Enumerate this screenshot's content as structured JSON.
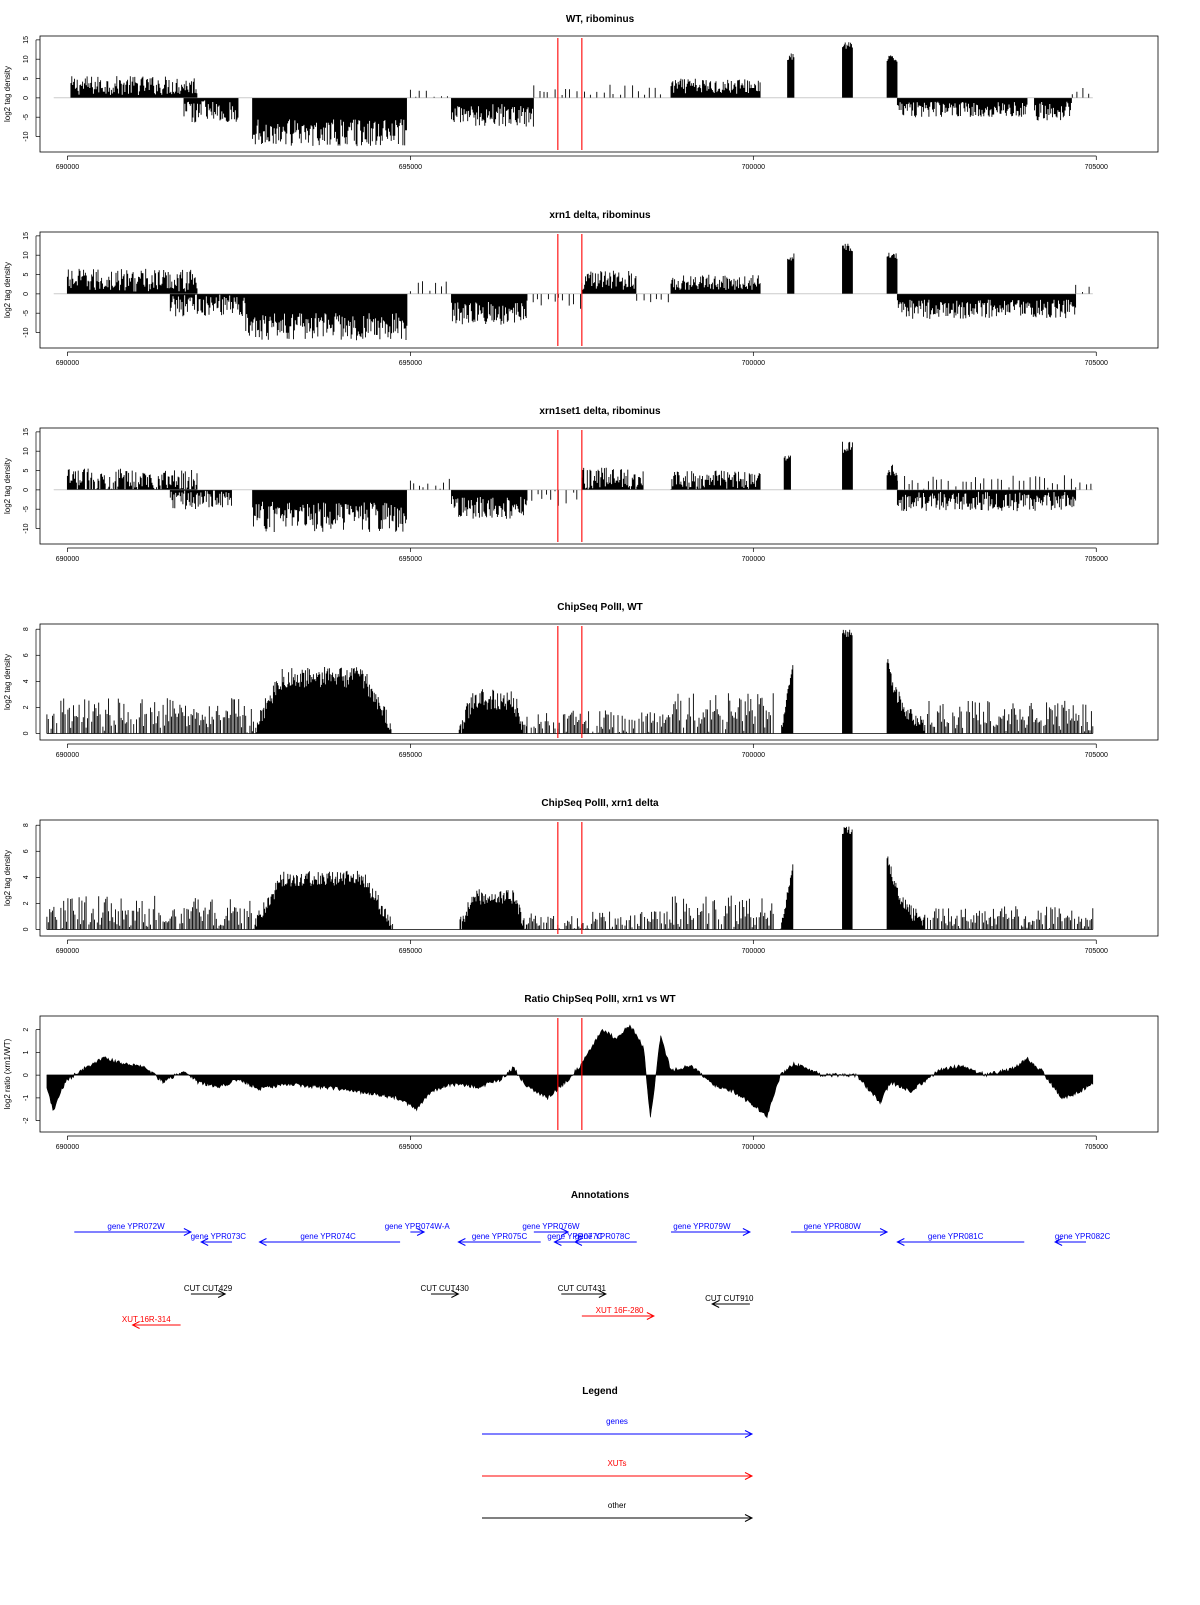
{
  "colors": {
    "gene": "#0000ff",
    "xut": "#ff0000",
    "other": "#000000",
    "marker": "#ff0000",
    "bars": "#000000",
    "zero_line": "#999999"
  },
  "x_axis": {
    "xlim": [
      689600,
      705900
    ],
    "ticks": [
      690000,
      695000,
      700000,
      705000
    ],
    "tick_labels": [
      "690000",
      "695000",
      "700000",
      "705000"
    ]
  },
  "markers": [
    697150,
    697500
  ],
  "panels": [
    {
      "title": "WT, ribominus",
      "ylabel": "log2 tag density",
      "ylim": [
        -14,
        16
      ],
      "yticks": [
        -10,
        -5,
        0,
        5,
        10,
        15
      ],
      "ytick_labels": [
        "-10",
        "-5",
        "0",
        "5",
        "10",
        "15"
      ],
      "chart_data": {
        "type": "bar",
        "segments": [
          {
            "start": 690050,
            "end": 691900,
            "sign": 1,
            "mean": 3.2,
            "amp": 2.5
          },
          {
            "start": 691700,
            "end": 692500,
            "sign": -1,
            "mean": 3.5,
            "amp": 3
          },
          {
            "start": 692700,
            "end": 694950,
            "sign": -1,
            "mean": 9,
            "amp": 3.5
          },
          {
            "start": 695600,
            "end": 696800,
            "sign": -1,
            "mean": 4.5,
            "amp": 3
          },
          {
            "start": 698800,
            "end": 700100,
            "sign": 1,
            "mean": 3,
            "amp": 2
          },
          {
            "start": 700500,
            "end": 700600,
            "sign": 1,
            "mean": 10.5,
            "amp": 1
          },
          {
            "start": 701300,
            "end": 701450,
            "sign": 1,
            "mean": 13.5,
            "amp": 1
          },
          {
            "start": 701950,
            "end": 702100,
            "sign": 1,
            "mean": 10,
            "amp": 1
          },
          {
            "start": 702100,
            "end": 704000,
            "sign": -1,
            "mean": 3,
            "amp": 2
          },
          {
            "start": 704100,
            "end": 704650,
            "sign": -1,
            "mean": 3.5,
            "amp": 2.5
          }
        ],
        "sparse": [
          {
            "start": 695000,
            "end": 695600,
            "sign": 1,
            "mean": 1,
            "amp": 1.5
          },
          {
            "start": 696800,
            "end": 698700,
            "sign": 1,
            "mean": 1.5,
            "amp": 1.5
          },
          {
            "start": 704650,
            "end": 704950,
            "sign": 1,
            "mean": 1.5,
            "amp": 1
          }
        ]
      }
    },
    {
      "title": "xrn1 delta, ribominus",
      "ylabel": "log2 tag density",
      "ylim": [
        -14,
        16
      ],
      "yticks": [
        -10,
        -5,
        0,
        5,
        10,
        15
      ],
      "ytick_labels": [
        "-10",
        "-5",
        "0",
        "5",
        "10",
        "15"
      ],
      "chart_data": {
        "type": "bar",
        "segments": [
          {
            "start": 690000,
            "end": 691900,
            "sign": 1,
            "mean": 3.5,
            "amp": 3
          },
          {
            "start": 691500,
            "end": 692600,
            "sign": -1,
            "mean": 3,
            "amp": 3
          },
          {
            "start": 692600,
            "end": 694950,
            "sign": -1,
            "mean": 8.5,
            "amp": 3.5
          },
          {
            "start": 695600,
            "end": 696700,
            "sign": -1,
            "mean": 5,
            "amp": 3
          },
          {
            "start": 697500,
            "end": 698300,
            "sign": 1,
            "mean": 3.5,
            "amp": 2.5
          },
          {
            "start": 698800,
            "end": 700100,
            "sign": 1,
            "mean": 3,
            "amp": 2
          },
          {
            "start": 700500,
            "end": 700600,
            "sign": 1,
            "mean": 9.5,
            "amp": 1
          },
          {
            "start": 701300,
            "end": 701450,
            "sign": 1,
            "mean": 12,
            "amp": 1
          },
          {
            "start": 701950,
            "end": 702100,
            "sign": 1,
            "mean": 10,
            "amp": 1
          },
          {
            "start": 702100,
            "end": 704700,
            "sign": -1,
            "mean": 4,
            "amp": 2.5
          }
        ],
        "sparse": [
          {
            "start": 695000,
            "end": 695600,
            "sign": 1,
            "mean": 1.5,
            "amp": 1.5
          },
          {
            "start": 696700,
            "end": 697500,
            "sign": -1,
            "mean": 2,
            "amp": 2
          },
          {
            "start": 698300,
            "end": 698800,
            "sign": -1,
            "mean": 1.5,
            "amp": 1
          },
          {
            "start": 704700,
            "end": 704950,
            "sign": 1,
            "mean": 1,
            "amp": 1
          }
        ]
      }
    },
    {
      "title": "xrn1set1 delta, ribominus",
      "ylabel": "log2 tag density",
      "ylim": [
        -14,
        16
      ],
      "yticks": [
        -10,
        -5,
        0,
        5,
        10,
        15
      ],
      "ytick_labels": [
        "-10",
        "-5",
        "0",
        "5",
        "10",
        "15"
      ],
      "chart_data": {
        "type": "bar",
        "segments": [
          {
            "start": 690000,
            "end": 691900,
            "sign": 1,
            "mean": 2.5,
            "amp": 3
          },
          {
            "start": 691500,
            "end": 692400,
            "sign": -1,
            "mean": 2.5,
            "amp": 2.5
          },
          {
            "start": 692700,
            "end": 694950,
            "sign": -1,
            "mean": 7,
            "amp": 4
          },
          {
            "start": 695600,
            "end": 696700,
            "sign": -1,
            "mean": 4.5,
            "amp": 3
          },
          {
            "start": 697500,
            "end": 698400,
            "sign": 1,
            "mean": 3,
            "amp": 3
          },
          {
            "start": 698800,
            "end": 700100,
            "sign": 1,
            "mean": 2.5,
            "amp": 2.5
          },
          {
            "start": 700450,
            "end": 700550,
            "sign": 1,
            "mean": 8,
            "amp": 1
          },
          {
            "start": 701300,
            "end": 701450,
            "sign": 1,
            "mean": 11,
            "amp": 1.5
          },
          {
            "start": 701950,
            "end": 702100,
            "sign": 1,
            "mean": 5,
            "amp": 1.5
          },
          {
            "start": 702100,
            "end": 704700,
            "sign": -1,
            "mean": 3,
            "amp": 2.5
          }
        ],
        "sparse": [
          {
            "start": 695000,
            "end": 695600,
            "sign": 1,
            "mean": 1,
            "amp": 1.5
          },
          {
            "start": 696700,
            "end": 697500,
            "sign": -1,
            "mean": 1.5,
            "amp": 2
          },
          {
            "start": 702100,
            "end": 704700,
            "sign": 1,
            "mean": 1,
            "amp": 2
          },
          {
            "start": 704700,
            "end": 704950,
            "sign": 1,
            "mean": 1,
            "amp": 1
          }
        ]
      }
    },
    {
      "title": "ChipSeq PolII, WT",
      "ylabel": "log2 tag density",
      "ylim": [
        -0.5,
        8.4
      ],
      "yticks": [
        0,
        2,
        4,
        6,
        8
      ],
      "ytick_labels": [
        "0",
        "2",
        "4",
        "6",
        "8"
      ],
      "chart_data": {
        "type": "area",
        "segments": [
          {
            "start": 689700,
            "end": 692700,
            "shape": "noisy",
            "peak": 1.6,
            "amp": 1.2
          },
          {
            "start": 692700,
            "end": 694750,
            "shape": "dome",
            "peak": 4.3,
            "amp": 0.8
          },
          {
            "start": 695700,
            "end": 696700,
            "shape": "dome",
            "peak": 2.6,
            "amp": 0.8
          },
          {
            "start": 696700,
            "end": 698800,
            "shape": "noisy",
            "peak": 0.8,
            "amp": 1
          },
          {
            "start": 698800,
            "end": 700300,
            "shape": "noisy",
            "peak": 1.9,
            "amp": 1.2
          },
          {
            "start": 700400,
            "end": 700580,
            "shape": "ramp",
            "peak": 5.4,
            "amp": 0.3
          },
          {
            "start": 701300,
            "end": 701450,
            "shape": "flat",
            "peak": 7.7,
            "amp": 0.3
          },
          {
            "start": 701950,
            "end": 702500,
            "shape": "decay",
            "peak": 5.4,
            "amp": 0.6
          },
          {
            "start": 702500,
            "end": 704950,
            "shape": "noisy",
            "peak": 1.5,
            "amp": 1
          }
        ]
      }
    },
    {
      "title": "ChipSeq PolII, xrn1 delta",
      "ylabel": "log2 tag density",
      "ylim": [
        -0.5,
        8.4
      ],
      "yticks": [
        0,
        2,
        4,
        6,
        8
      ],
      "ytick_labels": [
        "0",
        "2",
        "4",
        "6",
        "8"
      ],
      "chart_data": {
        "type": "area",
        "segments": [
          {
            "start": 689700,
            "end": 692700,
            "shape": "noisy",
            "peak": 1.4,
            "amp": 1.2
          },
          {
            "start": 692700,
            "end": 694750,
            "shape": "dome",
            "peak": 3.9,
            "amp": 0.6
          },
          {
            "start": 695700,
            "end": 696700,
            "shape": "dome",
            "peak": 2.5,
            "amp": 0.6
          },
          {
            "start": 696700,
            "end": 698800,
            "shape": "noisy",
            "peak": 0.6,
            "amp": 0.8
          },
          {
            "start": 698800,
            "end": 700300,
            "shape": "noisy",
            "peak": 1.6,
            "amp": 1
          },
          {
            "start": 700400,
            "end": 700580,
            "shape": "ramp",
            "peak": 5,
            "amp": 0.3
          },
          {
            "start": 701300,
            "end": 701450,
            "shape": "flat",
            "peak": 7.6,
            "amp": 0.3
          },
          {
            "start": 701950,
            "end": 702500,
            "shape": "decay",
            "peak": 5.4,
            "amp": 0.6
          },
          {
            "start": 702500,
            "end": 704950,
            "shape": "noisy",
            "peak": 1,
            "amp": 0.8
          }
        ]
      }
    },
    {
      "title": "Ratio ChipSeq PolII, xrn1 vs WT",
      "ylabel": "log2 ratio (xrn1/WT)",
      "ylim": [
        -2.5,
        2.6
      ],
      "yticks": [
        -2,
        -1,
        0,
        1,
        2
      ],
      "ytick_labels": [
        "-2",
        "-1",
        "0",
        "1",
        "2"
      ],
      "chart_data": {
        "type": "area",
        "points": [
          [
            689700,
            -0.6
          ],
          [
            689800,
            -1.6
          ],
          [
            689900,
            -0.7
          ],
          [
            690000,
            -0.2
          ],
          [
            690300,
            0.4
          ],
          [
            690550,
            0.75
          ],
          [
            690800,
            0.5
          ],
          [
            691100,
            0.4
          ],
          [
            691400,
            -0.3
          ],
          [
            691700,
            0.2
          ],
          [
            691900,
            -0.3
          ],
          [
            692200,
            -0.5
          ],
          [
            692500,
            -0.2
          ],
          [
            692800,
            -0.6
          ],
          [
            693200,
            -0.4
          ],
          [
            693600,
            -0.5
          ],
          [
            694000,
            -0.6
          ],
          [
            694400,
            -0.8
          ],
          [
            694800,
            -1.0
          ],
          [
            695100,
            -1.5
          ],
          [
            695300,
            -0.7
          ],
          [
            695600,
            -0.4
          ],
          [
            696000,
            -0.5
          ],
          [
            696300,
            -0.2
          ],
          [
            696500,
            0.3
          ],
          [
            696700,
            -0.5
          ],
          [
            697000,
            -1.0
          ],
          [
            697150,
            -0.6
          ],
          [
            697300,
            -0.2
          ],
          [
            697500,
            0.5
          ],
          [
            697800,
            2.0
          ],
          [
            698000,
            1.6
          ],
          [
            698200,
            2.2
          ],
          [
            698400,
            1.2
          ],
          [
            698500,
            -1.9
          ],
          [
            698650,
            1.7
          ],
          [
            698800,
            0.2
          ],
          [
            699100,
            0.4
          ],
          [
            699400,
            -0.4
          ],
          [
            699700,
            -0.7
          ],
          [
            700000,
            -1.3
          ],
          [
            700200,
            -1.8
          ],
          [
            700400,
            0.0
          ],
          [
            700600,
            0.5
          ],
          [
            701000,
            0.0
          ],
          [
            701500,
            0.0
          ],
          [
            701850,
            -1.2
          ],
          [
            702000,
            -0.3
          ],
          [
            702300,
            -0.7
          ],
          [
            702700,
            0.2
          ],
          [
            703000,
            0.4
          ],
          [
            703400,
            0.0
          ],
          [
            703800,
            0.3
          ],
          [
            704000,
            0.7
          ],
          [
            704200,
            0.2
          ],
          [
            704500,
            -1.0
          ],
          [
            704700,
            -0.8
          ],
          [
            704950,
            -0.4
          ]
        ]
      }
    }
  ],
  "annotations": {
    "title": "Annotations",
    "items": [
      {
        "label": "gene YPR072W",
        "type": "gene",
        "start": 690100,
        "end": 691800,
        "label_x": 691000,
        "row": 0
      },
      {
        "label": "gene YPR073C",
        "type": "gene",
        "start": 691950,
        "end": 692400,
        "label_x": 692200,
        "row": 1
      },
      {
        "label": "gene YPR074C",
        "type": "gene",
        "start": 692800,
        "end": 694850,
        "label_x": 693800,
        "row": 1
      },
      {
        "label": "gene YPR074W-A",
        "type": "gene",
        "start": 695000,
        "end": 695200,
        "label_x": 695100,
        "row": 0
      },
      {
        "label": "gene YPR075C",
        "type": "gene",
        "start": 695700,
        "end": 696900,
        "label_x": 696300,
        "row": 1
      },
      {
        "label": "gene YPR076W",
        "type": "gene",
        "start": 696800,
        "end": 697300,
        "label_x": 697050,
        "row": 0
      },
      {
        "label": "gene YPR077C",
        "type": "gene",
        "start": 697100,
        "end": 697500,
        "label_x": 697400,
        "row": 1
      },
      {
        "label": "gene YPR078C",
        "type": "gene",
        "start": 697400,
        "end": 698300,
        "label_x": 697800,
        "row": 1
      },
      {
        "label": "gene YPR079W",
        "type": "gene",
        "start": 698800,
        "end": 699950,
        "label_x": 699250,
        "row": 0
      },
      {
        "label": "gene YPR080W",
        "type": "gene",
        "start": 700550,
        "end": 701950,
        "label_x": 701150,
        "row": 0
      },
      {
        "label": "gene YPR081C",
        "type": "gene",
        "start": 702100,
        "end": 703950,
        "label_x": 702950,
        "row": 1
      },
      {
        "label": "gene YPR082C",
        "type": "gene",
        "start": 704400,
        "end": 704850,
        "label_x": 704800,
        "row": 1
      },
      {
        "label": "CUT CUT429",
        "type": "other",
        "start": 691800,
        "end": 692300,
        "label_x": 692050,
        "row": 2
      },
      {
        "label": "CUT CUT430",
        "type": "other",
        "start": 695300,
        "end": 695700,
        "label_x": 695500,
        "row": 2
      },
      {
        "label": "CUT CUT431",
        "type": "other",
        "start": 697200,
        "end": 697850,
        "label_x": 697500,
        "row": 2
      },
      {
        "label": "CUT CUT910",
        "type": "other",
        "start": 699400,
        "end": 699950,
        "label_x": 699650,
        "row": 3
      },
      {
        "label": "XUT 16F-280",
        "type": "xut",
        "start": 697500,
        "end": 698550,
        "label_x": 698050,
        "row": 4
      },
      {
        "label": "XUT 16R-314",
        "type": "xut",
        "start": 690950,
        "end": 691650,
        "label_x": 691150,
        "row": 5
      }
    ],
    "strand_reverse": [
      "gene YPR073C",
      "gene YPR074C",
      "gene YPR075C",
      "gene YPR077C",
      "gene YPR078C",
      "gene YPR081C",
      "gene YPR082C",
      "CUT CUT910",
      "XUT 16R-314"
    ]
  },
  "legend": {
    "title": "Legend",
    "items": [
      {
        "label": "genes",
        "type": "gene"
      },
      {
        "label": "XUTs",
        "type": "xut"
      },
      {
        "label": "other",
        "type": "other"
      }
    ]
  }
}
